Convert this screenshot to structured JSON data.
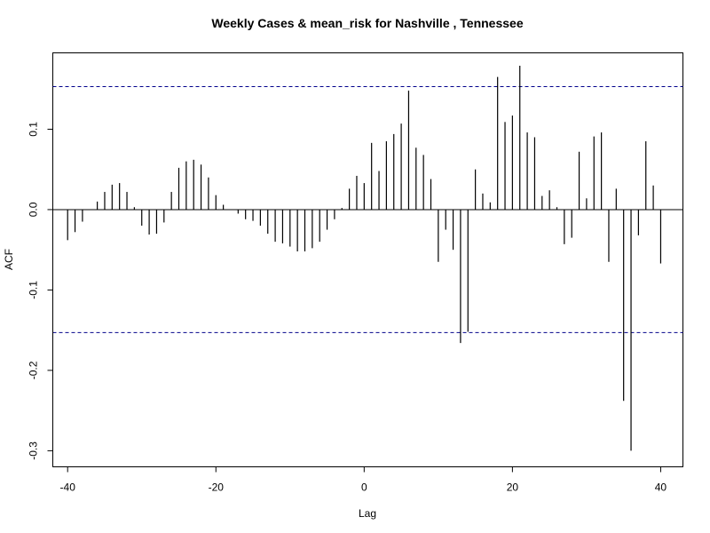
{
  "chart_data": {
    "type": "bar",
    "title": "Weekly Cases & mean_risk for Nashville , Tennessee",
    "xlabel": "Lag",
    "ylabel": "ACF",
    "xlim": [
      -42,
      43
    ],
    "ylim": [
      -0.32,
      0.195
    ],
    "xticks": [
      -40,
      -20,
      0,
      20,
      40
    ],
    "yticks": [
      -0.3,
      -0.2,
      -0.1,
      0.0,
      0.1
    ],
    "ytick_labels": [
      "-0.3",
      "-0.2",
      "-0.1",
      "0.0",
      "0.1"
    ],
    "confidence_limit": 0.153,
    "confidence_line_color": "#00008b",
    "series": [
      {
        "x": [
          -40,
          -39,
          -38,
          -37,
          -36,
          -35,
          -34,
          -33,
          -32,
          -31,
          -30,
          -29,
          -28,
          -27,
          -26,
          -25,
          -24,
          -23,
          -22,
          -21,
          -20,
          -19,
          -18,
          -17,
          -16,
          -15,
          -14,
          -13,
          -12,
          -11,
          -10,
          -9,
          -8,
          -7,
          -6,
          -5,
          -4,
          -3,
          -2,
          -1,
          0,
          1,
          2,
          3,
          4,
          5,
          6,
          7,
          8,
          9,
          10,
          11,
          12,
          13,
          14,
          15,
          16,
          17,
          18,
          19,
          20,
          21,
          22,
          23,
          24,
          25,
          26,
          27,
          28,
          29,
          30,
          31,
          32,
          33,
          34,
          35,
          36,
          37,
          38,
          39,
          40
        ],
        "values": [
          -0.038,
          -0.028,
          -0.015,
          0.0,
          0.01,
          0.022,
          0.031,
          0.033,
          0.022,
          0.003,
          -0.02,
          -0.031,
          -0.03,
          -0.016,
          0.022,
          0.052,
          0.06,
          0.062,
          0.056,
          0.04,
          0.018,
          0.006,
          0.0,
          -0.005,
          -0.012,
          -0.014,
          -0.02,
          -0.03,
          -0.04,
          -0.042,
          -0.046,
          -0.052,
          -0.052,
          -0.048,
          -0.04,
          -0.025,
          -0.012,
          0.002,
          0.026,
          0.042,
          0.033,
          0.083,
          0.048,
          0.085,
          0.094,
          0.107,
          0.148,
          0.077,
          0.068,
          0.038,
          -0.065,
          -0.025,
          -0.05,
          -0.166,
          -0.152,
          0.05,
          0.02,
          0.009,
          0.165,
          0.109,
          0.117,
          0.179,
          0.096,
          0.09,
          0.017,
          0.024,
          0.003,
          -0.043,
          -0.035,
          0.072,
          0.014,
          0.091,
          0.096,
          -0.065,
          0.026,
          -0.238,
          -0.3,
          -0.032,
          0.085,
          0.03,
          -0.067
        ]
      }
    ],
    "grid": false
  }
}
